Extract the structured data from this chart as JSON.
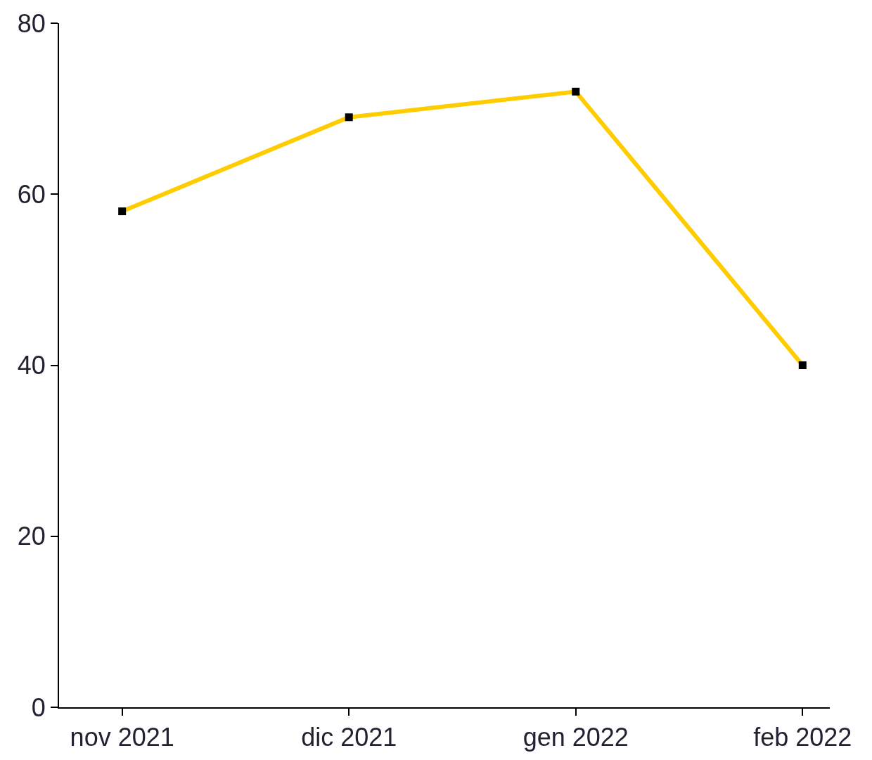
{
  "chart_data": {
    "type": "line",
    "categories": [
      "nov 2021",
      "dic 2021",
      "gen 2022",
      "feb 2022"
    ],
    "series": [
      {
        "color": "#ffcc00",
        "values": [
          58,
          69,
          72,
          40
        ]
      }
    ],
    "ylim": [
      0,
      80
    ],
    "yticks": [
      0,
      20,
      40,
      60,
      80
    ],
    "grid": false,
    "legend": false,
    "marker": "square",
    "line_style": "solid"
  }
}
